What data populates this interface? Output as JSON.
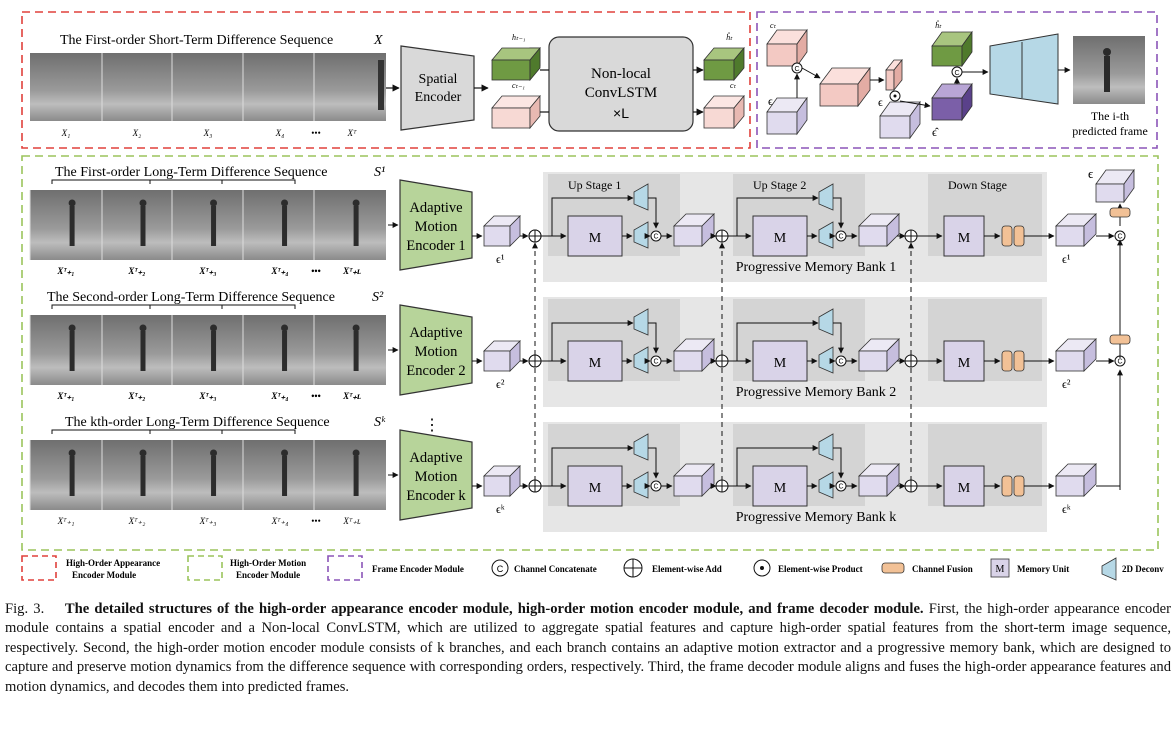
{
  "appearance": {
    "seq_title": "The First-order Short-Term Difference Sequence",
    "seq_symbol": "X",
    "frame_labels": [
      "X₁",
      "X₂",
      "X₃",
      "X₄",
      "•••",
      "Xᵀ"
    ],
    "spatial_encoder": [
      "Spatial",
      "Encoder"
    ],
    "convlstm": [
      "Non-local",
      "ConvLSTM",
      "×L"
    ],
    "h_prev": "hₜ₋₁",
    "c_prev": "cₜ₋₁",
    "h_next": "ĥₜ",
    "c_next": "cₜ"
  },
  "decoder": {
    "c_label": "cₜ",
    "h_label": "ĥₜ",
    "eps_label": "ϵ",
    "eps_hat_label": "ϵ̂",
    "predicted": [
      "The i-th",
      "predicted frame"
    ]
  },
  "motion": {
    "branches": [
      {
        "title": "The First-order Long-Term Difference Sequence",
        "symbol": "S¹",
        "encoder": [
          "Adaptive",
          "Motion",
          "Encoder 1"
        ],
        "eps": "ϵ¹",
        "bank": "Progressive Memory Bank 1"
      },
      {
        "title": "The Second-order Long-Term Difference Sequence",
        "symbol": "S²",
        "encoder": [
          "Adaptive",
          "Motion",
          "Encoder 2"
        ],
        "eps": "ϵ²",
        "bank": "Progressive Memory Bank 2"
      },
      {
        "title": "The kth-order Long-Term Difference Sequence",
        "symbol": "Sᵏ",
        "encoder": [
          "Adaptive",
          "Motion",
          "Encoder k"
        ],
        "eps": "ϵᵏ",
        "bank": "Progressive Memory Bank k"
      }
    ],
    "frame_labels": [
      "Xᵀ₊₁",
      "Xᵀ₊₂",
      "Xᵀ₊₃",
      "Xᵀ₊₄",
      "•••",
      "Xᵀ₊ʟ"
    ],
    "up_stage_1": "Up Stage 1",
    "up_stage_2": "Up Stage 2",
    "down_stage": "Down Stage",
    "memory_unit": "M",
    "concat_symbol": "C",
    "vdots": "⋮",
    "final_eps": "ϵ"
  },
  "legend": {
    "appearance": [
      "High-Order Appearance",
      "Encoder Module"
    ],
    "motion": [
      "High-Order Motion",
      "Encoder Module"
    ],
    "frame": "Frame Encoder Module",
    "concat": "Channel Concatenate",
    "add": "Element-wise Add",
    "product": "Element-wise Product",
    "fusion": "Channel Fusion",
    "memory": "Memory Unit",
    "deconv": "2D Deconv"
  },
  "colors": {
    "appearance_border": "#e0413c",
    "motion_border": "#9bc45c",
    "frame_border": "#8b55b8",
    "encoder_fill": "#b7d49a",
    "memory_fill": "#d9d3e8",
    "deconv_fill": "#b6d8e6",
    "fusion_fill": "#f2c196",
    "bank_bg": "#e6e6e6"
  },
  "caption": {
    "figure": "Fig. 3.",
    "title": "The detailed structures of the high-order appearance encoder module, high-order motion encoder module, and frame decoder module.",
    "body": "First, the high-order appearance encoder module contains a spatial encoder and a Non-local ConvLSTM, which are utilized to aggregate spatial features and capture high-order spatial features from the short-term image sequence, respectively. Second, the high-order motion encoder module consists of k branches, and each branch contains an adaptive motion extractor and a progressive memory bank, which are designed to capture and preserve motion dynamics from the difference sequence with corresponding orders, respectively. Third, the frame decoder module aligns and fuses the high-order appearance features and motion dynamics, and decodes them into predicted frames."
  }
}
